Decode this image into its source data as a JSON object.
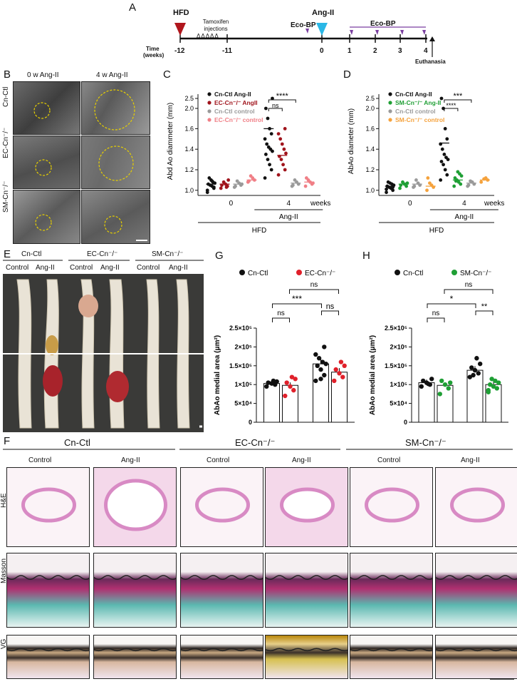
{
  "colors": {
    "black": "#111111",
    "red": "#e0202a",
    "darkred": "#a0141c",
    "gray": "#9a9a9a",
    "pink": "#f07f86",
    "green": "#1f9f35",
    "orange": "#f5a23c",
    "cyan": "#2ab7e6",
    "purple": "#7a3fa0"
  },
  "panel_letters": [
    "A",
    "B",
    "C",
    "D",
    "E",
    "F",
    "G",
    "H"
  ],
  "timeline": {
    "hfd": "HFD",
    "tamoxifen": "Tamoxifen\ninjections",
    "angii": "Ang-II",
    "ecobp1": "Eco-BP",
    "ecobp2": "Eco-BP",
    "time_label_1": "Time",
    "time_label_2": "(weeks)",
    "ticks": [
      "-12",
      "-11",
      "0",
      "1",
      "2",
      "3",
      "4"
    ],
    "euthanasia": "Euthanasia",
    "triangles": "ΔΔΔΔΔ"
  },
  "panelB": {
    "col_headers": [
      "0 w Ang-II",
      "4 w Ang-II"
    ],
    "row_labels": [
      "Cn-Ctl",
      "EC-Cn⁻/⁻",
      "SM-Cn⁻/⁻"
    ]
  },
  "panelE": {
    "group_headers": [
      "Cn-Ctl",
      "EC-Cn⁻/⁻",
      "SM-Cn⁻/⁻"
    ],
    "sub_headers": [
      "Control",
      "Ang-II",
      "Control",
      "Ang-II",
      "Control",
      "Ang-II"
    ]
  },
  "panelF": {
    "group_headers": [
      "Cn-Ctl",
      "EC-Cn⁻/⁻",
      "SM-Cn⁻/⁻"
    ],
    "sub_headers": [
      "Control",
      "Ang-II",
      "Control",
      "Ang-II",
      "Control",
      "Ang-II"
    ],
    "row_labels": [
      "H&E",
      "Masson",
      "VG"
    ]
  },
  "chart_data": [
    {
      "id": "C",
      "type": "scatter",
      "ylabel": "Abd Ao diammeter (mm)",
      "yticks": [
        "1.0",
        "1.2",
        "1.4",
        "1.6",
        "2.0",
        "2.5"
      ],
      "xticks": [
        "0",
        "4"
      ],
      "xunit": "weeks",
      "group_label": "Ang-II",
      "hfd_label": "HFD",
      "legend": [
        {
          "name": "Cn-Ctl Ang-II",
          "color": "#111111"
        },
        {
          "name": "EC-Cn⁻/⁻ AngII",
          "color": "#a0141c"
        },
        {
          "name": "Cn-Ctl control",
          "color": "#9a9a9a"
        },
        {
          "name": "EC-Cn⁻/⁻ control",
          "color": "#f07f86"
        }
      ],
      "sig": [
        "****",
        "ns"
      ],
      "series": [
        {
          "name": "Cn-Ctl Ang-II",
          "week": 0,
          "mean": 1.06,
          "values": [
            1.0,
            1.02,
            1.04,
            1.05,
            1.06,
            1.07,
            1.08,
            1.1,
            1.12,
            0.98,
            1.03,
            1.09
          ]
        },
        {
          "name": "EC-Cn⁻/⁻ AngII",
          "week": 0,
          "mean": 1.06,
          "values": [
            1.02,
            1.04,
            1.06,
            1.08,
            1.05,
            1.1,
            1.03
          ]
        },
        {
          "name": "Cn-Ctl control",
          "week": 0,
          "mean": 1.06,
          "values": [
            1.03,
            1.05,
            1.07,
            1.09,
            1.04,
            1.06
          ]
        },
        {
          "name": "EC-Cn⁻/⁻ control",
          "week": 0,
          "mean": 1.1,
          "values": [
            1.08,
            1.1,
            1.12,
            1.14,
            1.09
          ]
        },
        {
          "name": "Cn-Ctl Ang-II",
          "week": 4,
          "mean": 1.6,
          "values": [
            1.12,
            1.2,
            1.25,
            1.3,
            1.35,
            1.38,
            1.4,
            1.42,
            1.45,
            1.5,
            1.55,
            1.6,
            1.7,
            2.0,
            2.5
          ]
        },
        {
          "name": "EC-Cn⁻/⁻ AngII",
          "week": 4,
          "mean": 1.34,
          "values": [
            1.15,
            1.2,
            1.25,
            1.3,
            1.33,
            1.36,
            1.4,
            1.45,
            1.5,
            1.55,
            1.6
          ]
        },
        {
          "name": "Cn-Ctl control",
          "week": 4,
          "mean": 1.07,
          "values": [
            1.04,
            1.06,
            1.08,
            1.1,
            1.05
          ]
        },
        {
          "name": "EC-Cn⁻/⁻ control",
          "week": 4,
          "mean": 1.08,
          "values": [
            1.04,
            1.06,
            1.08,
            1.1,
            1.12,
            1.07
          ]
        }
      ]
    },
    {
      "id": "D",
      "type": "scatter",
      "ylabel": "AbAo diameter (mm)",
      "yticks": [
        "1.0",
        "1.2",
        "1.4",
        "1.6",
        "2.0",
        "2.5"
      ],
      "xticks": [
        "0",
        "4"
      ],
      "xunit": "weeks",
      "group_label": "Ang-II",
      "hfd_label": "HFD",
      "legend": [
        {
          "name": "Cn-Ctl Ang-II",
          "color": "#111111"
        },
        {
          "name": "SM-Cn⁻/⁻ Ang-II",
          "color": "#1f9f35"
        },
        {
          "name": "Cn-Ctl control",
          "color": "#9a9a9a"
        },
        {
          "name": "SM-Cn⁻/⁻ control",
          "color": "#f5a23c"
        }
      ],
      "sig": [
        "***",
        "****"
      ],
      "series": [
        {
          "name": "Cn-Ctl Ang-II",
          "week": 0,
          "mean": 1.04,
          "values": [
            0.98,
            1.0,
            1.02,
            1.03,
            1.04,
            1.05,
            1.06,
            1.07,
            1.08,
            1.01,
            1.03
          ]
        },
        {
          "name": "SM-Cn⁻/⁻ Ang-II",
          "week": 0,
          "mean": 1.06,
          "values": [
            1.02,
            1.04,
            1.06,
            1.08,
            1.05,
            1.07
          ]
        },
        {
          "name": "Cn-Ctl control",
          "week": 0,
          "mean": 1.06,
          "values": [
            1.03,
            1.05,
            1.07,
            1.1,
            1.04
          ]
        },
        {
          "name": "SM-Cn⁻/⁻ control",
          "week": 0,
          "mean": 1.04,
          "values": [
            1.0,
            1.03,
            1.05,
            1.07,
            1.12
          ]
        },
        {
          "name": "Cn-Ctl Ang-II",
          "week": 4,
          "mean": 1.46,
          "values": [
            1.1,
            1.15,
            1.2,
            1.25,
            1.28,
            1.3,
            1.32,
            1.35,
            1.4,
            1.45,
            1.5,
            1.6,
            2.0,
            2.5
          ]
        },
        {
          "name": "SM-Cn⁻/⁻ Ang-II",
          "week": 4,
          "mean": 1.1,
          "values": [
            1.04,
            1.06,
            1.08,
            1.1,
            1.12,
            1.14,
            1.16,
            1.18,
            1.09
          ]
        },
        {
          "name": "Cn-Ctl control",
          "week": 4,
          "mean": 1.07,
          "values": [
            1.04,
            1.06,
            1.08,
            1.09,
            1.05
          ]
        },
        {
          "name": "SM-Cn⁻/⁻ control",
          "week": 4,
          "mean": 1.1,
          "values": [
            1.08,
            1.1,
            1.12,
            1.11
          ]
        }
      ]
    },
    {
      "id": "G",
      "type": "bar",
      "ylabel": "AbAo medial area (μm²)",
      "yticks": [
        "0",
        "5×10⁴",
        "1×10⁵",
        "1.5×10⁵",
        "2×10⁵",
        "2.5×10⁵"
      ],
      "categories": [
        "Control",
        "Ang-II"
      ],
      "legend": [
        {
          "name": "Cn-Ctl",
          "color": "#111111"
        },
        {
          "name": "EC-Cn⁻/⁻",
          "color": "#e0202a"
        }
      ],
      "sig": [
        "ns",
        "***",
        "ns",
        "ns"
      ],
      "series": [
        {
          "name": "Cn-Ctl",
          "values": [
            103000,
            155000
          ],
          "points": [
            [
              95000,
              100000,
              103000,
              105000,
              108000,
              110000
            ],
            [
              110000,
              125000,
              140000,
              150000,
              155000,
              160000,
              170000,
              180000,
              200000,
              115000
            ]
          ]
        },
        {
          "name": "EC-Cn⁻/⁻",
          "values": [
            98000,
            133000
          ],
          "points": [
            [
              70000,
              85000,
              95000,
              105000,
              115000,
              120000
            ],
            [
              110000,
              120000,
              130000,
              140000,
              150000,
              160000
            ]
          ]
        }
      ]
    },
    {
      "id": "H",
      "type": "bar",
      "ylabel": "AbAo medial area (μm²)",
      "yticks": [
        "0",
        "5×10⁴",
        "1×10⁵",
        "1.5×10⁵",
        "2×10⁵",
        "2.5×10⁵"
      ],
      "categories": [
        "Control",
        "Ang-II"
      ],
      "legend": [
        {
          "name": "Cn-Ctl",
          "color": "#111111"
        },
        {
          "name": "SM-Cn⁻/⁻",
          "color": "#1f9f35"
        }
      ],
      "sig": [
        "ns",
        "*",
        "**",
        "ns"
      ],
      "series": [
        {
          "name": "Cn-Ctl",
          "values": [
            105000,
            138000
          ],
          "points": [
            [
              95000,
              100000,
              105000,
              110000,
              115000,
              102000
            ],
            [
              120000,
              130000,
              138000,
              145000,
              155000,
              170000,
              125000
            ]
          ]
        },
        {
          "name": "SM-Cn⁻/⁻",
          "values": [
            98000,
            100000
          ],
          "points": [
            [
              75000,
              90000,
              100000,
              110000,
              105000
            ],
            [
              80000,
              90000,
              95000,
              100000,
              105000,
              110000,
              115000,
              85000
            ]
          ]
        }
      ]
    }
  ]
}
